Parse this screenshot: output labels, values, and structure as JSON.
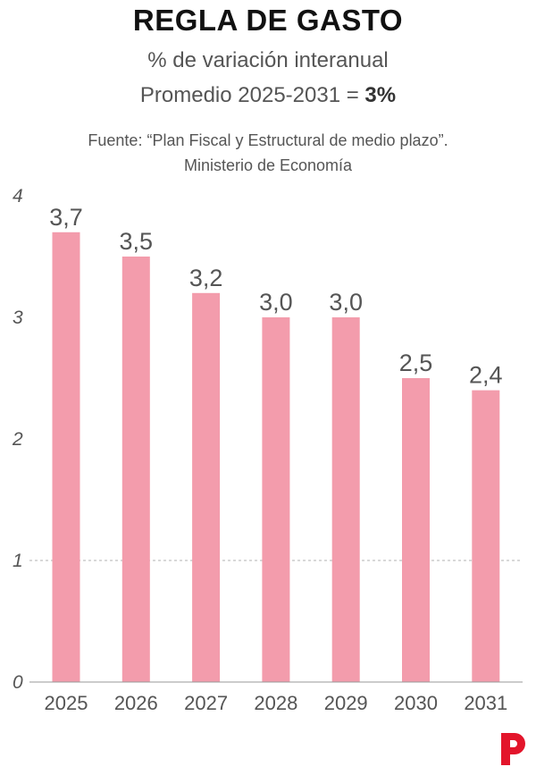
{
  "header": {
    "title": "REGLA DE GASTO",
    "subtitle": "% de variación interanual",
    "average_prefix": "Promedio 2025-2031 = ",
    "average_value": "3%",
    "source_line1": "Fuente: “Plan Fiscal y Estructural de medio plazo”.",
    "source_line2": "Ministerio de Economía"
  },
  "colors": {
    "bar": "#f39cac",
    "logo": "#e3152b",
    "axis": "#999999",
    "gridline": "#b0b0b0"
  },
  "logo": {
    "icon": "p-logo-icon"
  },
  "chart_data": {
    "type": "bar",
    "categories": [
      "2025",
      "2026",
      "2027",
      "2028",
      "2029",
      "2030",
      "2031"
    ],
    "values": [
      3.7,
      3.5,
      3.2,
      3.0,
      3.0,
      2.5,
      2.4
    ],
    "value_labels": [
      "3,7",
      "3,5",
      "3,2",
      "3,0",
      "3,0",
      "2,5",
      "2,4"
    ],
    "yticks": [
      0,
      1,
      2,
      3,
      4
    ],
    "ylim": [
      0,
      4
    ],
    "dashed_gridline_at": 1,
    "grid": false
  }
}
